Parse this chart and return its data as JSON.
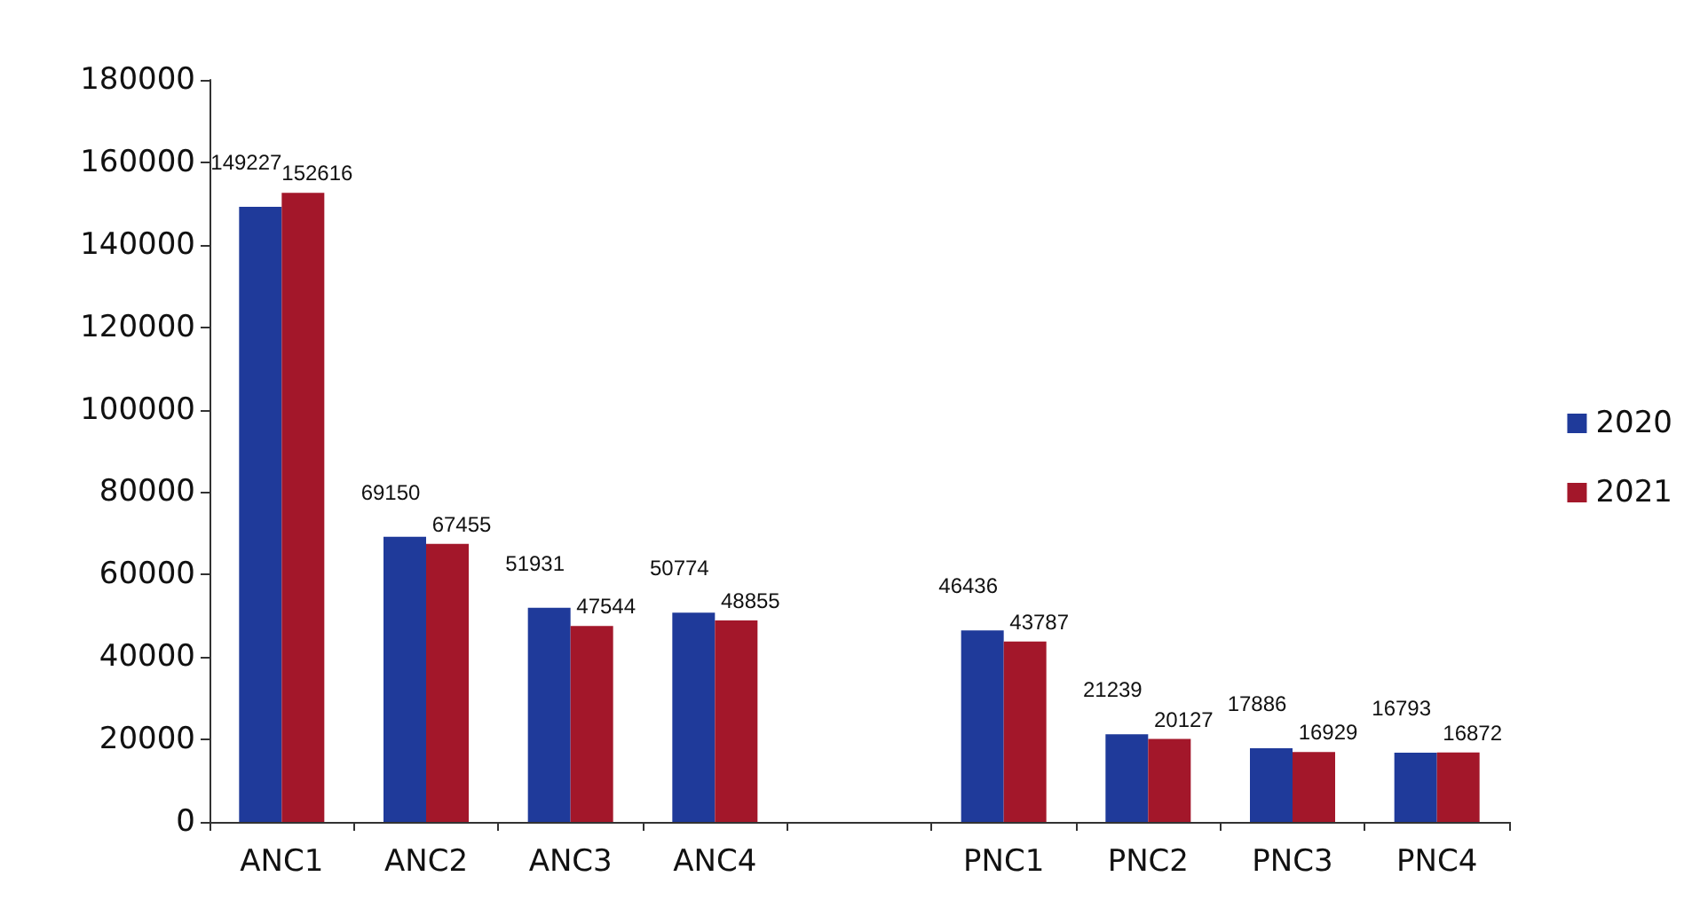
{
  "chart_data": {
    "type": "bar",
    "categories": [
      "ANC1",
      "ANC2",
      "ANC3",
      "ANC4",
      null,
      "PNC1",
      "PNC2",
      "PNC3",
      "PNC4"
    ],
    "series": [
      {
        "name": "2020",
        "color": "#1f3a9a",
        "values": [
          149227,
          69150,
          51931,
          50774,
          null,
          46436,
          21239,
          17886,
          16793
        ]
      },
      {
        "name": "2021",
        "color": "#a3172a",
        "values": [
          152616,
          67455,
          47544,
          48855,
          null,
          43787,
          20127,
          16929,
          16872
        ]
      }
    ],
    "ylim": [
      0,
      180000
    ],
    "yticks": [
      0,
      20000,
      40000,
      60000,
      80000,
      100000,
      120000,
      140000,
      160000,
      180000
    ],
    "data_labels": true,
    "grid": false,
    "legend": "right"
  }
}
